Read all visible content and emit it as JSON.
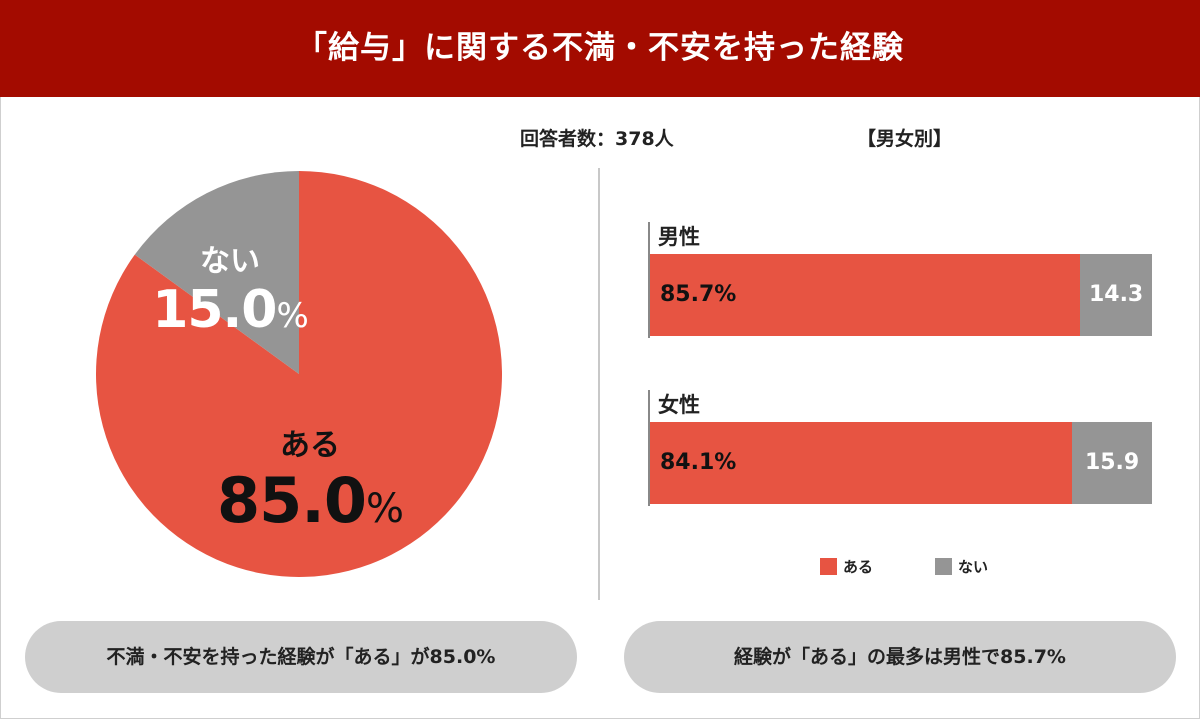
{
  "title": "「給与」に関する不満・不安を持った経験",
  "respondents": "回答者数：378人",
  "gender_heading": "【男女別】",
  "colors": {
    "yes": "#e75442",
    "no": "#959595",
    "banner": "#a30b00"
  },
  "pie": {
    "no_label": "ない",
    "no_value": "15.0",
    "yes_label": "ある",
    "yes_value": "85.0",
    "unit": "%"
  },
  "bars": [
    {
      "group": "男性",
      "yes_label": "85.7%",
      "no_label": "14.3"
    },
    {
      "group": "女性",
      "yes_label": "84.1%",
      "no_label": "15.9"
    }
  ],
  "legend": {
    "yes": "ある",
    "no": "ない"
  },
  "footer": {
    "left": "不満・不安を持った経験が「ある」が85.0%",
    "right": "経験が「ある」の最多は男性で85.7%"
  },
  "chart_data": [
    {
      "type": "pie",
      "categories": [
        "ある",
        "ない"
      ],
      "values": [
        85.0,
        15.0
      ],
      "title": "「給与」に関する不満・不安を持った経験"
    },
    {
      "type": "bar",
      "orientation": "horizontal",
      "stacked": true,
      "title": "【男女別】",
      "categories": [
        "男性",
        "女性"
      ],
      "series": [
        {
          "name": "ある",
          "values": [
            85.7,
            84.1
          ]
        },
        {
          "name": "ない",
          "values": [
            14.3,
            15.9
          ]
        }
      ],
      "xlim": [
        0,
        100
      ],
      "legend": "bottom"
    }
  ]
}
